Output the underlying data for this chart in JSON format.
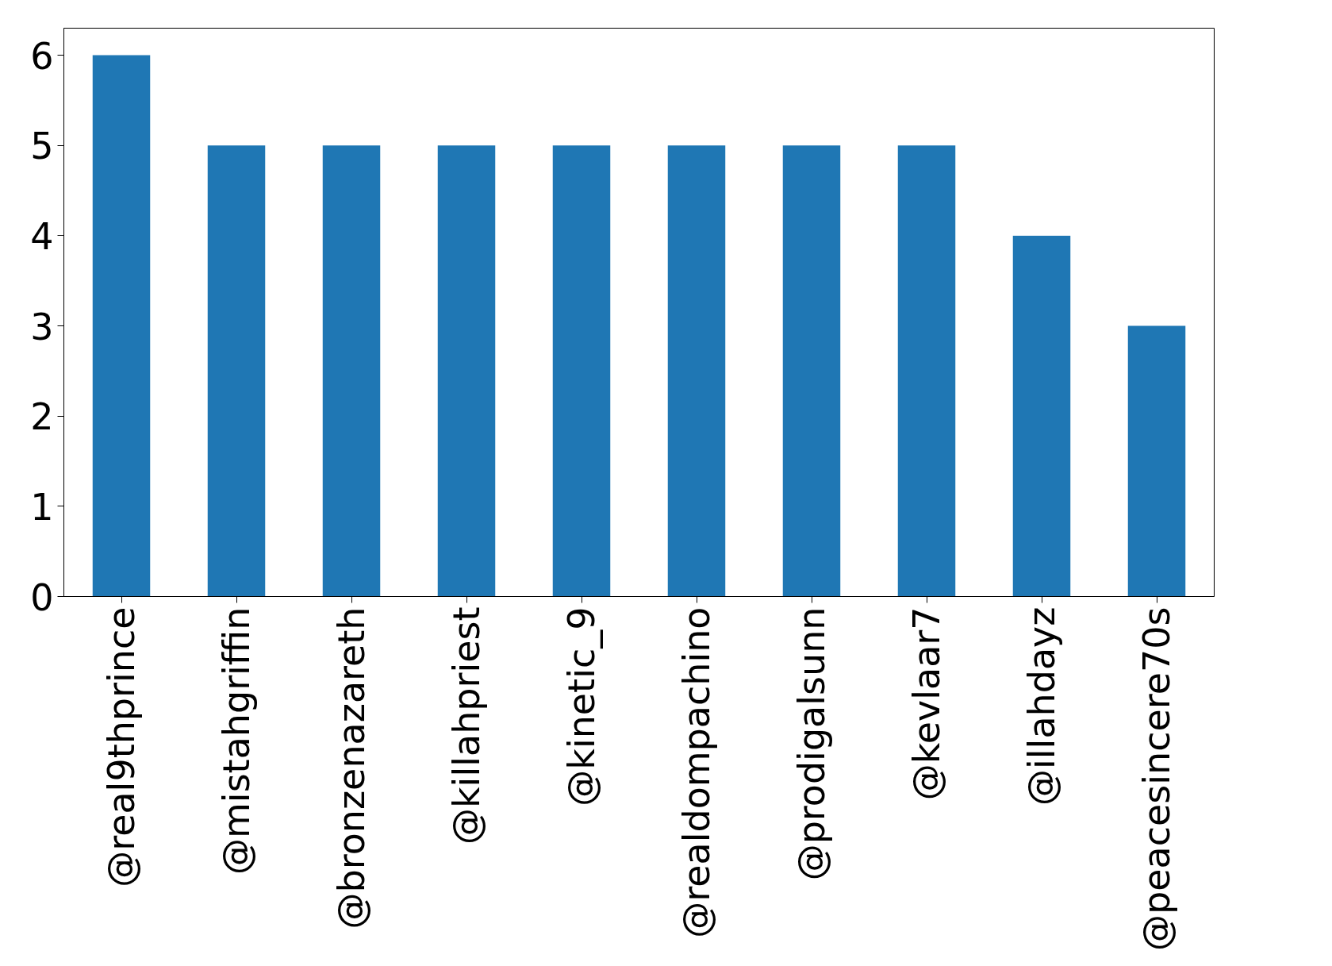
{
  "chart_data": {
    "type": "bar",
    "categories": [
      "@real9thprince",
      "@mistahgriffin",
      "@bronzenazareth",
      "@killahpriest",
      "@kinetic_9",
      "@realdompachino",
      "@prodigalsunn",
      "@kevlaar7",
      "@illahdayz",
      "@peacesincere70s"
    ],
    "values": [
      6,
      5,
      5,
      5,
      5,
      5,
      5,
      5,
      4,
      3
    ],
    "color": "#1f77b4",
    "ylim": [
      0,
      6.3
    ],
    "yticks": [
      0,
      1,
      2,
      3,
      4,
      5,
      6
    ],
    "grid": false
  }
}
